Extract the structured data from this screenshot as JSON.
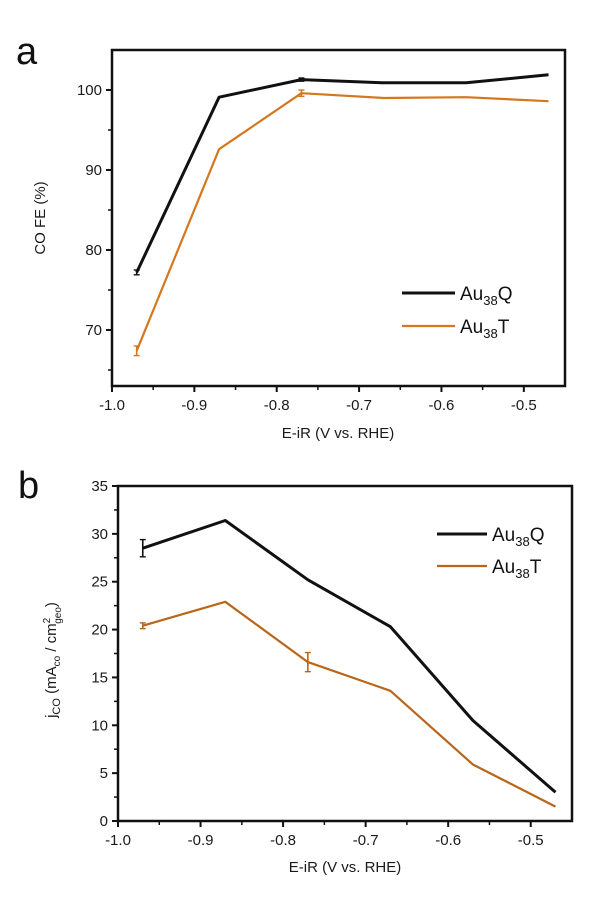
{
  "chart_data": [
    {
      "panel": "a",
      "type": "line",
      "title": "",
      "xlabel": "E-iR (V vs. RHE)",
      "ylabel": "CO FE (%)",
      "xlim": [
        -1.0,
        -0.45
      ],
      "ylim": [
        63,
        105
      ],
      "xticks": [
        -1.0,
        -0.9,
        -0.8,
        -0.7,
        -0.6,
        -0.5
      ],
      "xtick_labels": [
        "-1.0",
        "-0.9",
        "-0.8",
        "-0.7",
        "-0.6",
        "-0.5"
      ],
      "yticks": [
        70,
        80,
        90,
        100
      ],
      "ytick_labels": [
        "70",
        "80",
        "90",
        "100"
      ],
      "grid": false,
      "legend_position": "bottom-right",
      "x": [
        -0.97,
        -0.87,
        -0.77,
        -0.67,
        -0.57,
        -0.47
      ],
      "series": [
        {
          "name": "Au38Q",
          "base": "Au",
          "sub": "38",
          "suffix": "Q",
          "color": "#111111",
          "values": [
            77.2,
            99.1,
            101.3,
            100.9,
            100.9,
            101.9
          ],
          "errors": [
            0.3,
            0,
            0.2,
            0,
            0,
            0
          ]
        },
        {
          "name": "Au38T",
          "base": "Au",
          "sub": "38",
          "suffix": "T",
          "color": "#d4781f",
          "values": [
            67.4,
            92.6,
            99.6,
            99.0,
            99.1,
            98.6
          ],
          "errors": [
            0.6,
            0,
            0.4,
            0,
            0,
            0
          ]
        }
      ]
    },
    {
      "panel": "b",
      "type": "line",
      "title": "",
      "xlabel": "E-iR (V vs. RHE)",
      "ylabel": "jCO (mACO / cm2geo)",
      "ylabel_parts": {
        "main": "j",
        "main_sub": "CO",
        "open": " (mA",
        "unit_sub": "co",
        "mid": " / cm",
        "sup": "2",
        "geo_sub": "geo",
        "close": ")"
      },
      "xlim": [
        -1.0,
        -0.45
      ],
      "ylim": [
        0,
        35
      ],
      "xticks": [
        -1.0,
        -0.9,
        -0.8,
        -0.7,
        -0.6,
        -0.5
      ],
      "xtick_labels": [
        "-1.0",
        "-0.9",
        "-0.8",
        "-0.7",
        "-0.6",
        "-0.5"
      ],
      "yticks": [
        0,
        5,
        10,
        15,
        20,
        25,
        30,
        35
      ],
      "ytick_labels": [
        "0",
        "5",
        "10",
        "15",
        "20",
        "25",
        "30",
        "35"
      ],
      "grid": false,
      "legend_position": "top-right",
      "x": [
        -0.97,
        -0.87,
        -0.77,
        -0.67,
        -0.57,
        -0.47
      ],
      "series": [
        {
          "name": "Au38Q",
          "base": "Au",
          "sub": "38",
          "suffix": "Q",
          "color": "#111111",
          "values": [
            28.5,
            31.4,
            25.2,
            20.3,
            10.5,
            3.0
          ],
          "errors": [
            0.9,
            0,
            0,
            0,
            0,
            0
          ]
        },
        {
          "name": "Au38T",
          "base": "Au",
          "sub": "38",
          "suffix": "T",
          "color": "#b8661a",
          "values": [
            20.4,
            22.9,
            16.6,
            13.6,
            5.9,
            1.5
          ],
          "errors": [
            0.3,
            0,
            1.0,
            0,
            0,
            0
          ]
        }
      ]
    }
  ],
  "panel_letters": [
    "a",
    "b"
  ]
}
